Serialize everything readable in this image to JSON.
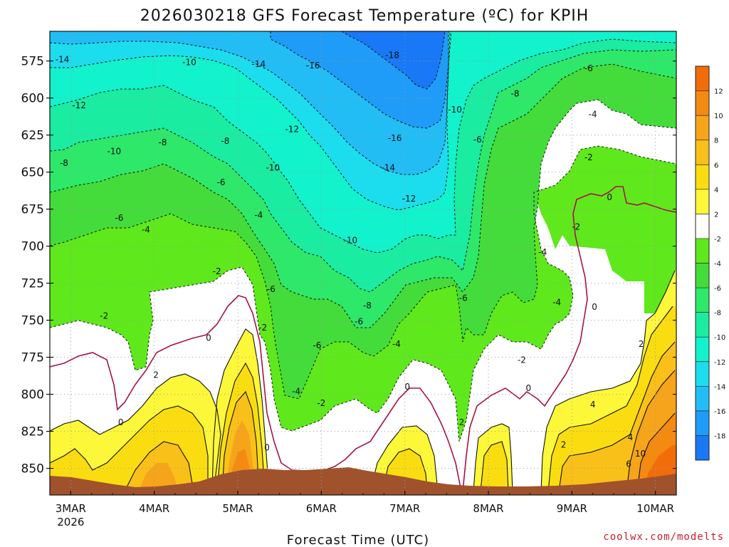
{
  "chart_data": {
    "type": "heatmap",
    "title": "2026030218 GFS Forecast Temperature (ºC) for KPIH",
    "xlabel": "Forecast Time (UTC)",
    "credit": "coolwx.com/modelts",
    "x_ticks": [
      {
        "label": "3MAR",
        "sub": "2026"
      },
      {
        "label": "4MAR"
      },
      {
        "label": "5MAR"
      },
      {
        "label": "6MAR"
      },
      {
        "label": "7MAR"
      },
      {
        "label": "8MAR"
      },
      {
        "label": "9MAR"
      },
      {
        "label": "10MAR"
      }
    ],
    "y_ticks": [
      "575",
      "600",
      "625",
      "650",
      "675",
      "700",
      "725",
      "750",
      "775",
      "800",
      "825",
      "850"
    ],
    "ylabel_units": "hPa",
    "xlim_days": [
      2.75,
      10.25
    ],
    "ylim_hpa": [
      555,
      868
    ],
    "colorbar": {
      "labels": [
        "12",
        "10",
        "8",
        "6",
        "4",
        "2",
        "-2",
        "-4",
        "-6",
        "-8",
        "-10",
        "-12",
        "-14",
        "-16",
        "-18"
      ],
      "colors": [
        "#f26d09",
        "#f48a10",
        "#f6a41a",
        "#f8c018",
        "#fadd10",
        "#fdf73a",
        "#ffffff",
        "#5fe81c",
        "#44dc3a",
        "#2ee86a",
        "#1aeca2",
        "#12f2cc",
        "#1cddee",
        "#23bdf6",
        "#1e9cf8",
        "#1878f6"
      ]
    },
    "contour_labels": [
      {
        "text": "-14",
        "day": 2.9,
        "p": 574
      },
      {
        "text": "-10",
        "day": 4.42,
        "p": 576
      },
      {
        "text": "-14",
        "day": 5.25,
        "p": 577
      },
      {
        "text": "-16",
        "day": 5.9,
        "p": 578
      },
      {
        "text": "-18",
        "day": 6.85,
        "p": 571
      },
      {
        "text": "-6",
        "day": 9.2,
        "p": 580
      },
      {
        "text": "-8",
        "day": 8.32,
        "p": 597
      },
      {
        "text": "-10",
        "day": 7.6,
        "p": 608
      },
      {
        "text": "-12",
        "day": 3.1,
        "p": 605
      },
      {
        "text": "-4",
        "day": 9.25,
        "p": 611
      },
      {
        "text": "-16",
        "day": 6.88,
        "p": 627
      },
      {
        "text": "-12",
        "day": 5.65,
        "p": 621
      },
      {
        "text": "-8",
        "day": 4.1,
        "p": 630
      },
      {
        "text": "-8",
        "day": 4.85,
        "p": 629
      },
      {
        "text": "-6",
        "day": 7.87,
        "p": 628
      },
      {
        "text": "-10",
        "day": 3.52,
        "p": 636
      },
      {
        "text": "-8",
        "day": 2.92,
        "p": 644
      },
      {
        "text": "-2",
        "day": 9.2,
        "p": 640
      },
      {
        "text": "-14",
        "day": 6.8,
        "p": 647
      },
      {
        "text": "-10",
        "day": 5.42,
        "p": 647
      },
      {
        "text": "-6",
        "day": 4.8,
        "p": 657
      },
      {
        "text": "0",
        "day": 9.45,
        "p": 667
      },
      {
        "text": "-12",
        "day": 7.05,
        "p": 668
      },
      {
        "text": "-6",
        "day": 3.58,
        "p": 681
      },
      {
        "text": "-4",
        "day": 5.25,
        "p": 679
      },
      {
        "text": "-4",
        "day": 3.9,
        "p": 689
      },
      {
        "text": "-2",
        "day": 9.05,
        "p": 687
      },
      {
        "text": "-10",
        "day": 6.35,
        "p": 696
      },
      {
        "text": "-4",
        "day": 8.65,
        "p": 704
      },
      {
        "text": "-2",
        "day": 4.75,
        "p": 717
      },
      {
        "text": "-6",
        "day": 5.4,
        "p": 729
      },
      {
        "text": "-6",
        "day": 7.7,
        "p": 735
      },
      {
        "text": "-4",
        "day": 8.82,
        "p": 738
      },
      {
        "text": "-8",
        "day": 6.55,
        "p": 740
      },
      {
        "text": "0",
        "day": 9.27,
        "p": 741
      },
      {
        "text": "-2",
        "day": 3.4,
        "p": 747
      },
      {
        "text": "-6",
        "day": 6.45,
        "p": 751
      },
      {
        "text": "-2",
        "day": 5.3,
        "p": 755
      },
      {
        "text": "0",
        "day": 4.65,
        "p": 762
      },
      {
        "text": "-4",
        "day": 6.9,
        "p": 766
      },
      {
        "text": "-6",
        "day": 5.95,
        "p": 767
      },
      {
        "text": "2",
        "day": 9.83,
        "p": 766
      },
      {
        "text": "-2",
        "day": 8.4,
        "p": 777
      },
      {
        "text": "2",
        "day": 4.02,
        "p": 787
      },
      {
        "text": "0",
        "day": 7.03,
        "p": 795
      },
      {
        "text": "0",
        "day": 8.48,
        "p": 796
      },
      {
        "text": "-4",
        "day": 5.7,
        "p": 798
      },
      {
        "text": "-2",
        "day": 6.0,
        "p": 806
      },
      {
        "text": "4",
        "day": 9.25,
        "p": 807
      },
      {
        "text": "2",
        "day": 7.68,
        "p": 819
      },
      {
        "text": "0",
        "day": 3.6,
        "p": 819
      },
      {
        "text": "4",
        "day": 9.7,
        "p": 829
      },
      {
        "text": "0",
        "day": 5.35,
        "p": 836
      },
      {
        "text": "2",
        "day": 8.9,
        "p": 834
      },
      {
        "text": "10",
        "day": 9.82,
        "p": 840
      },
      {
        "text": "6",
        "day": 9.68,
        "p": 847
      }
    ]
  }
}
